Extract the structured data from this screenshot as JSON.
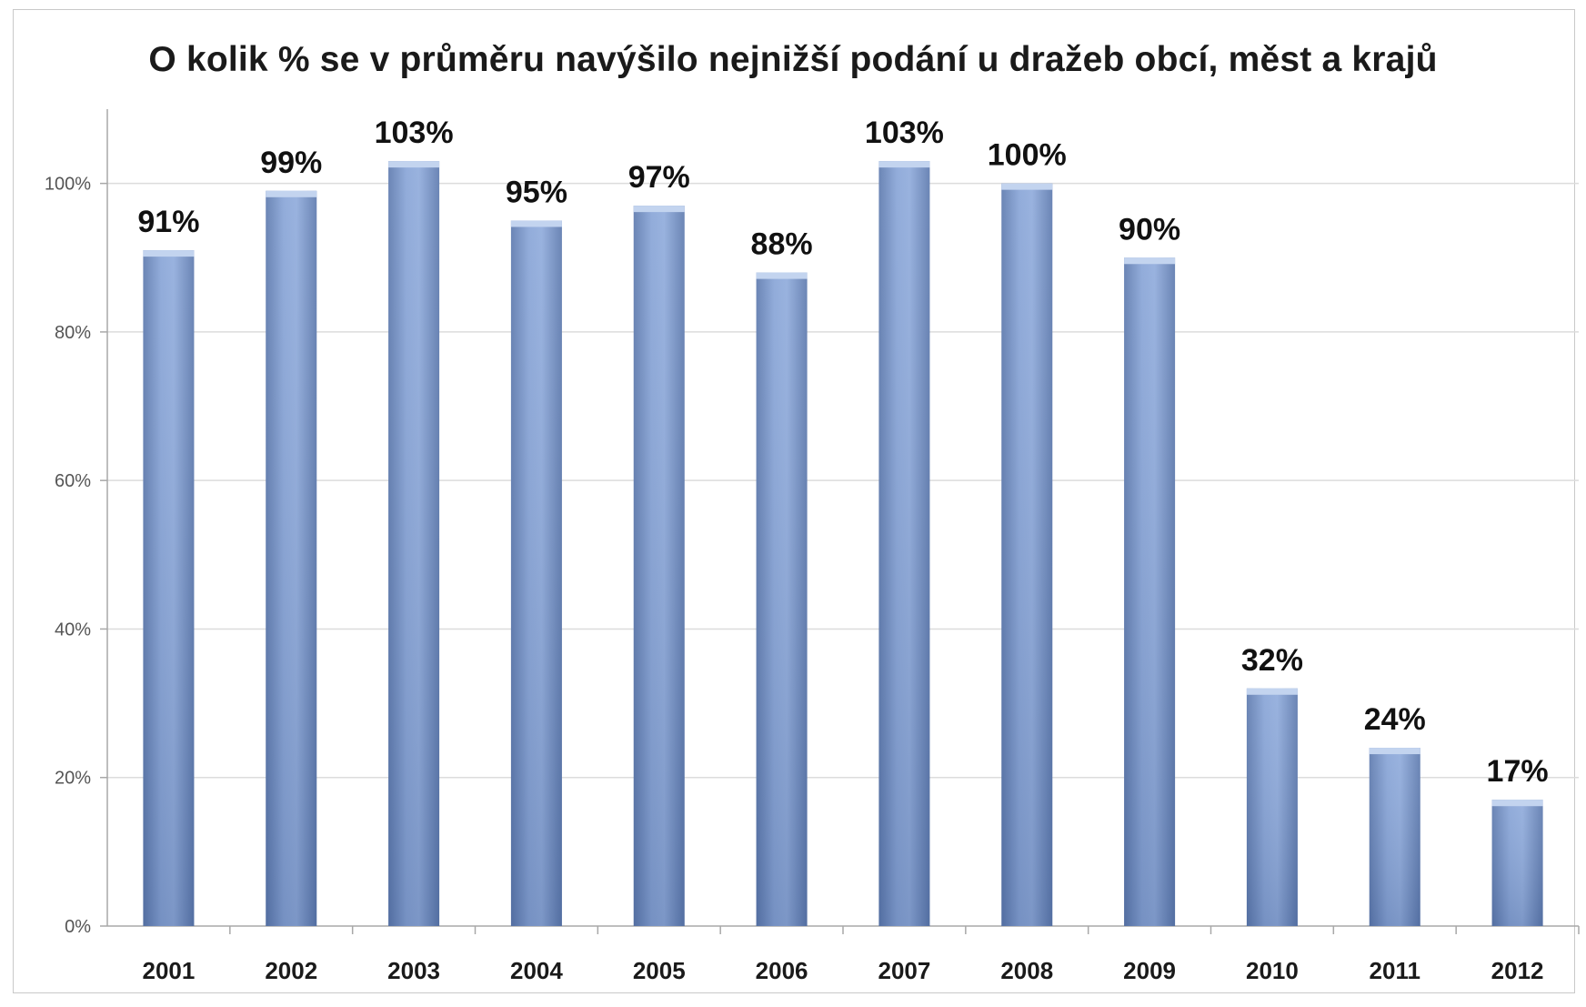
{
  "chart_data": {
    "type": "bar",
    "title": "O kolik % se v průměru navýšilo nejnižší podání u dražeb obcí, měst a krajů",
    "xlabel": "",
    "ylabel": "",
    "categories": [
      "2001",
      "2002",
      "2003",
      "2004",
      "2005",
      "2006",
      "2007",
      "2008",
      "2009",
      "2010",
      "2011",
      "2012"
    ],
    "values": [
      91,
      99,
      103,
      95,
      97,
      88,
      103,
      100,
      90,
      32,
      24,
      17
    ],
    "data_labels": [
      "91%",
      "99%",
      "103%",
      "95%",
      "97%",
      "88%",
      "103%",
      "100%",
      "90%",
      "32%",
      "24%",
      "17%"
    ],
    "ylim": [
      0,
      110
    ],
    "yticks": [
      0,
      20,
      40,
      60,
      80,
      100
    ],
    "ytick_labels": [
      "0%",
      "20%",
      "40%",
      "60%",
      "80%",
      "100%"
    ],
    "grid": true,
    "legend": "none",
    "colors": {
      "bar_light": "#9fb9e3",
      "bar_dark": "#5f7db5",
      "grid": "#dcdcdc",
      "axis": "#a8a8a8"
    }
  }
}
